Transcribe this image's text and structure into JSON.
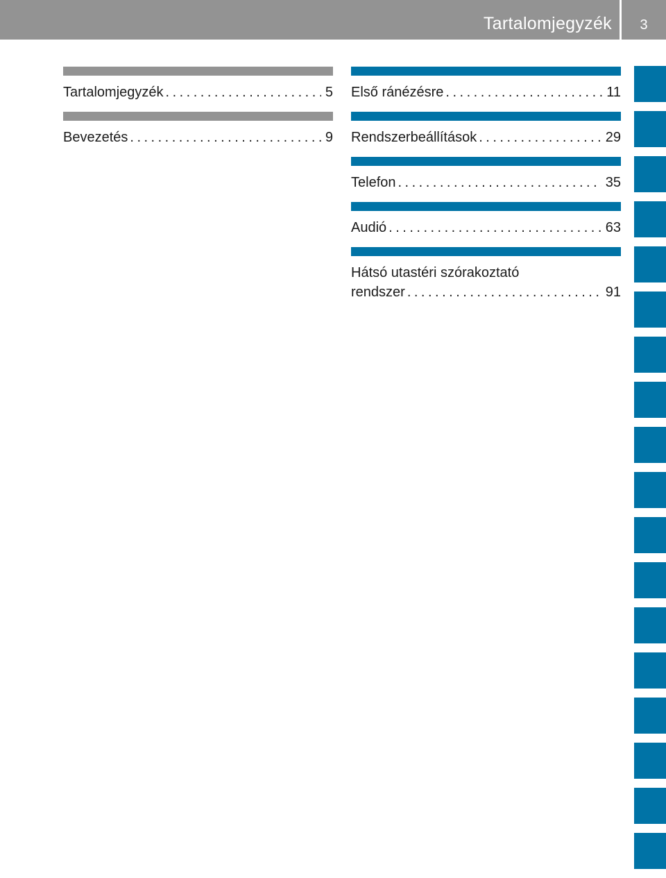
{
  "header": {
    "title": "Tartalomjegyzék",
    "page_number": "3"
  },
  "left_column": {
    "entries": [
      {
        "label": "Tartalomjegyzék",
        "dots": "........................................",
        "page": "5"
      },
      {
        "label": "Bevezetés",
        "dots": "........................................",
        "page": "9"
      }
    ]
  },
  "right_column": {
    "entries": [
      {
        "label": "Első ránézésre",
        "dots": "........................................",
        "page": "11"
      },
      {
        "label": "Rendszerbeállítások",
        "dots": "........................................",
        "page": "29"
      },
      {
        "label": "Telefon",
        "dots": "........................................",
        "page": "35"
      },
      {
        "label": "Audió",
        "dots": "........................................",
        "page": "63"
      }
    ],
    "last_entry": {
      "line1": "Hátsó utastéri szórakoztató",
      "line2": "rendszer",
      "dots": "........................................",
      "page": "91"
    }
  },
  "colors": {
    "header_gray": "#939393",
    "accent_blue": "#0073a6"
  }
}
